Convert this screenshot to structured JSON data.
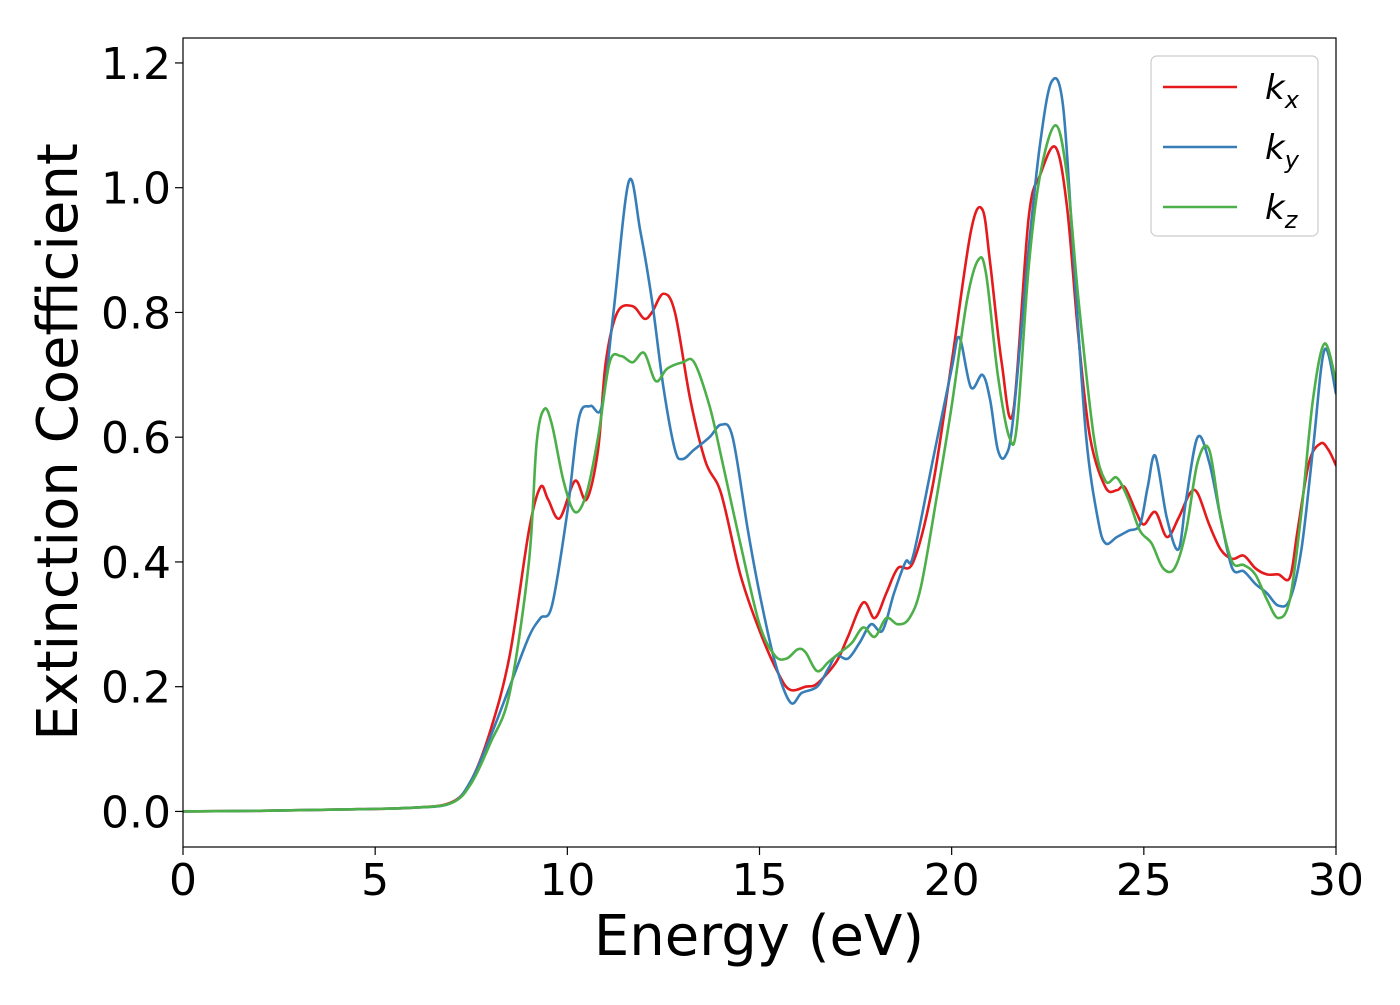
{
  "chart_data": {
    "type": "line",
    "xlabel": "Energy (eV)",
    "ylabel": "Extinction Coefficient",
    "xlim": [
      0,
      30
    ],
    "ylim": [
      -0.057,
      1.24
    ],
    "xticks": [
      0,
      5,
      10,
      15,
      20,
      25,
      30
    ],
    "xtick_labels": [
      "0",
      "5",
      "10",
      "15",
      "20",
      "25",
      "30"
    ],
    "yticks": [
      0.0,
      0.2,
      0.4,
      0.6,
      0.8,
      1.0,
      1.2
    ],
    "ytick_labels": [
      "0.0",
      "0.2",
      "0.4",
      "0.6",
      "0.8",
      "1.0",
      "1.2"
    ],
    "grid": false,
    "legend_position": "upper right",
    "series": [
      {
        "name": "k",
        "subscript": "x",
        "color": "#e41a1c",
        "x": [
          0,
          2,
          4,
          6,
          7,
          7.5,
          8,
          8.5,
          9,
          9.3,
          9.5,
          9.8,
          10.2,
          10.5,
          10.8,
          11.0,
          11.3,
          11.7,
          12.0,
          12.2,
          12.5,
          12.8,
          13.2,
          13.6,
          14.0,
          14.5,
          15.0,
          15.5,
          15.8,
          16.2,
          16.5,
          17.0,
          17.3,
          17.7,
          18.0,
          18.3,
          18.6,
          19.0,
          19.5,
          20.0,
          20.5,
          20.8,
          21.0,
          21.3,
          21.6,
          22.0,
          22.3,
          22.7,
          23.0,
          23.3,
          23.6,
          24.0,
          24.3,
          24.5,
          24.8,
          25.0,
          25.3,
          25.6,
          25.9,
          26.2,
          26.4,
          26.7,
          27.0,
          27.3,
          27.6,
          27.9,
          28.2,
          28.5,
          28.8,
          29.0,
          29.3,
          29.6,
          29.8,
          30.0
        ],
        "y": [
          0.0,
          0.001,
          0.003,
          0.006,
          0.015,
          0.05,
          0.13,
          0.25,
          0.45,
          0.52,
          0.5,
          0.47,
          0.53,
          0.5,
          0.58,
          0.72,
          0.8,
          0.81,
          0.79,
          0.8,
          0.83,
          0.8,
          0.66,
          0.56,
          0.51,
          0.38,
          0.29,
          0.22,
          0.195,
          0.2,
          0.205,
          0.24,
          0.28,
          0.335,
          0.31,
          0.35,
          0.39,
          0.4,
          0.52,
          0.72,
          0.93,
          0.965,
          0.88,
          0.72,
          0.64,
          0.95,
          1.02,
          1.065,
          0.97,
          0.76,
          0.6,
          0.52,
          0.515,
          0.52,
          0.48,
          0.46,
          0.48,
          0.44,
          0.47,
          0.51,
          0.51,
          0.46,
          0.42,
          0.405,
          0.41,
          0.39,
          0.38,
          0.38,
          0.375,
          0.45,
          0.56,
          0.59,
          0.58,
          0.555
        ]
      },
      {
        "name": "k",
        "subscript": "y",
        "color": "#377eb8",
        "x": [
          0,
          2,
          4,
          6,
          7,
          7.5,
          8,
          8.5,
          9,
          9.3,
          9.6,
          10.0,
          10.3,
          10.6,
          10.9,
          11.2,
          11.6,
          11.9,
          12.2,
          12.5,
          12.8,
          13.0,
          13.3,
          13.7,
          14.0,
          14.3,
          14.7,
          15.0,
          15.4,
          15.8,
          16.1,
          16.5,
          16.8,
          17.0,
          17.3,
          17.6,
          17.9,
          18.2,
          18.5,
          18.8,
          19.0,
          19.5,
          20.0,
          20.2,
          20.5,
          20.8,
          21.0,
          21.2,
          21.4,
          21.6,
          22.0,
          22.3,
          22.6,
          22.9,
          23.2,
          23.5,
          23.8,
          24.0,
          24.3,
          24.6,
          24.9,
          25.1,
          25.3,
          25.6,
          25.9,
          26.1,
          26.4,
          26.7,
          27.0,
          27.3,
          27.6,
          27.9,
          28.2,
          28.5,
          28.8,
          29.1,
          29.4,
          29.7,
          30.0
        ],
        "y": [
          0.0,
          0.001,
          0.003,
          0.006,
          0.014,
          0.05,
          0.12,
          0.2,
          0.28,
          0.31,
          0.33,
          0.48,
          0.63,
          0.65,
          0.65,
          0.8,
          1.01,
          0.93,
          0.82,
          0.68,
          0.58,
          0.565,
          0.58,
          0.6,
          0.62,
          0.6,
          0.45,
          0.35,
          0.24,
          0.175,
          0.19,
          0.2,
          0.23,
          0.25,
          0.245,
          0.27,
          0.3,
          0.29,
          0.35,
          0.4,
          0.41,
          0.56,
          0.71,
          0.76,
          0.68,
          0.7,
          0.66,
          0.58,
          0.57,
          0.63,
          0.9,
          1.07,
          1.17,
          1.13,
          0.86,
          0.6,
          0.47,
          0.43,
          0.44,
          0.45,
          0.46,
          0.52,
          0.57,
          0.47,
          0.42,
          0.5,
          0.6,
          0.56,
          0.47,
          0.39,
          0.385,
          0.365,
          0.35,
          0.33,
          0.34,
          0.42,
          0.58,
          0.74,
          0.67
        ]
      },
      {
        "name": "k",
        "subscript": "z",
        "color": "#4daf4a",
        "x": [
          0,
          2,
          4,
          6,
          7,
          7.5,
          8,
          8.5,
          9,
          9.2,
          9.4,
          9.6,
          9.9,
          10.2,
          10.5,
          10.8,
          11.1,
          11.4,
          11.7,
          12.0,
          12.3,
          12.6,
          13.0,
          13.3,
          13.7,
          14.0,
          14.5,
          15.0,
          15.4,
          15.7,
          16.0,
          16.2,
          16.5,
          16.8,
          17.1,
          17.4,
          17.7,
          18.0,
          18.3,
          18.6,
          18.9,
          19.2,
          19.6,
          20.0,
          20.4,
          20.7,
          20.9,
          21.2,
          21.5,
          21.7,
          22.0,
          22.3,
          22.7,
          23.0,
          23.3,
          23.7,
          24.0,
          24.3,
          24.6,
          24.9,
          25.2,
          25.5,
          25.8,
          26.1,
          26.4,
          26.7,
          27.0,
          27.3,
          27.6,
          27.9,
          28.2,
          28.5,
          28.8,
          29.1,
          29.4,
          29.7,
          30.0
        ],
        "y": [
          0.0,
          0.001,
          0.003,
          0.006,
          0.014,
          0.045,
          0.11,
          0.19,
          0.4,
          0.59,
          0.645,
          0.62,
          0.53,
          0.48,
          0.51,
          0.6,
          0.72,
          0.73,
          0.72,
          0.735,
          0.69,
          0.71,
          0.72,
          0.72,
          0.65,
          0.57,
          0.43,
          0.3,
          0.25,
          0.245,
          0.26,
          0.255,
          0.225,
          0.24,
          0.255,
          0.27,
          0.295,
          0.28,
          0.31,
          0.3,
          0.31,
          0.36,
          0.5,
          0.65,
          0.82,
          0.885,
          0.86,
          0.7,
          0.6,
          0.62,
          0.87,
          1.02,
          1.1,
          1.02,
          0.82,
          0.6,
          0.53,
          0.535,
          0.5,
          0.45,
          0.43,
          0.39,
          0.39,
          0.45,
          0.56,
          0.58,
          0.47,
          0.4,
          0.395,
          0.38,
          0.34,
          0.31,
          0.34,
          0.48,
          0.66,
          0.75,
          0.69
        ]
      }
    ]
  }
}
